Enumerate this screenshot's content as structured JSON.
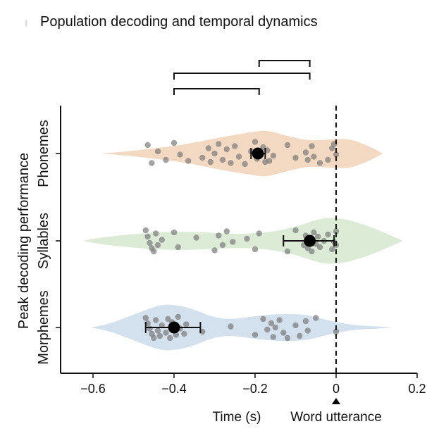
{
  "figure": {
    "title": "Population decoding and temporal dynamics"
  },
  "chart_data": {
    "type": "violin",
    "orientation": "horizontal",
    "title": "Population decoding and temporal dynamics",
    "xlabel": "Time (s)",
    "ylabel": "Peak decoding performance",
    "xlim": [
      -0.68,
      0.2
    ],
    "xticks": [
      -0.6,
      -0.4,
      -0.2,
      0,
      0.2
    ],
    "xtick_labels": [
      "−0.6",
      "−0.4",
      "−0.2",
      "0",
      "0.2"
    ],
    "annotations": [
      {
        "x": 0,
        "text": "Word utterance",
        "style": "dashed-vertical-line-with-marker"
      }
    ],
    "significance_brackets": [
      {
        "from": "Morphemes",
        "to": "Phonemes",
        "x1": -0.4,
        "x2": -0.19
      },
      {
        "from": "Morphemes",
        "to": "Syllables",
        "x1": -0.4,
        "x2": -0.065
      },
      {
        "from": "Phonemes",
        "to": "Syllables",
        "x1": -0.19,
        "x2": -0.065
      }
    ],
    "series": [
      {
        "name": "Phonemes",
        "color": "#f4d9c2",
        "mean": -0.193,
        "err_low": -0.21,
        "err_high": -0.175,
        "violin_range": [
          -0.58,
          0.115
        ],
        "density": [
          [
            -0.58,
            0.0
          ],
          [
            -0.52,
            0.08
          ],
          [
            -0.46,
            0.2
          ],
          [
            -0.4,
            0.32
          ],
          [
            -0.34,
            0.5
          ],
          [
            -0.28,
            0.72
          ],
          [
            -0.2,
            0.95
          ],
          [
            -0.17,
            1.0
          ],
          [
            -0.12,
            0.75
          ],
          [
            -0.07,
            0.55
          ],
          [
            -0.02,
            0.6
          ],
          [
            0.03,
            0.65
          ],
          [
            0.07,
            0.4
          ],
          [
            0.1,
            0.15
          ],
          [
            0.115,
            0.0
          ]
        ],
        "points": [
          -0.465,
          -0.455,
          -0.44,
          -0.42,
          -0.4,
          -0.385,
          -0.365,
          -0.33,
          -0.315,
          -0.31,
          -0.3,
          -0.29,
          -0.28,
          -0.27,
          -0.26,
          -0.25,
          -0.24,
          -0.225,
          -0.21,
          -0.2,
          -0.195,
          -0.185,
          -0.18,
          -0.175,
          -0.17,
          -0.165,
          -0.155,
          -0.12,
          -0.1,
          -0.075,
          -0.07,
          -0.06,
          -0.055,
          -0.04,
          -0.01,
          0.0,
          -0.005,
          -0.02
        ],
        "jitter": [
          -0.4,
          0.45,
          -0.1,
          0.3,
          -0.5,
          0.05,
          0.35,
          0.2,
          -0.25,
          0.4,
          0.0,
          -0.45,
          0.3,
          -0.2,
          0.45,
          -0.35,
          0.15,
          0.5,
          -0.1,
          -0.55,
          0.25,
          0.05,
          -0.3,
          0.4,
          -0.15,
          0.35,
          0.1,
          -0.4,
          0.2,
          -0.05,
          0.3,
          -0.35,
          0.15,
          0.45,
          -0.25,
          0.05,
          -0.45,
          0.3
        ]
      },
      {
        "name": "Syllables",
        "color": "#dcebd6",
        "mean": -0.065,
        "err_low": -0.13,
        "err_high": -0.005,
        "violin_range": [
          -0.625,
          0.165
        ],
        "density": [
          [
            -0.625,
            0.0
          ],
          [
            -0.58,
            0.15
          ],
          [
            -0.5,
            0.3
          ],
          [
            -0.42,
            0.4
          ],
          [
            -0.34,
            0.38
          ],
          [
            -0.28,
            0.32
          ],
          [
            -0.22,
            0.3
          ],
          [
            -0.16,
            0.38
          ],
          [
            -0.1,
            0.6
          ],
          [
            -0.05,
            0.9
          ],
          [
            -0.02,
            1.0
          ],
          [
            0.02,
            0.95
          ],
          [
            0.07,
            0.7
          ],
          [
            0.12,
            0.35
          ],
          [
            0.165,
            0.0
          ]
        ],
        "points": [
          -0.47,
          -0.465,
          -0.46,
          -0.455,
          -0.45,
          -0.445,
          -0.44,
          -0.43,
          -0.4,
          -0.39,
          -0.345,
          -0.3,
          -0.29,
          -0.28,
          -0.27,
          -0.255,
          -0.22,
          -0.2,
          -0.19,
          -0.12,
          -0.1,
          -0.08,
          -0.075,
          -0.07,
          -0.065,
          -0.06,
          -0.055,
          -0.05,
          -0.045,
          -0.04,
          -0.03,
          -0.02,
          -0.01,
          0.0,
          0.0,
          -0.005
        ],
        "jitter": [
          -0.5,
          -0.2,
          0.1,
          0.35,
          0.5,
          -0.35,
          0.2,
          -0.05,
          -0.4,
          0.3,
          -0.15,
          0.45,
          -0.25,
          0.2,
          -0.45,
          0.05,
          -0.1,
          0.4,
          -0.35,
          0.5,
          -0.5,
          0.2,
          -0.25,
          0.35,
          -0.1,
          0.5,
          -0.4,
          0.15,
          -0.2,
          0.3,
          0.0,
          -0.3,
          0.4,
          -0.45,
          0.2,
          0.05
        ]
      },
      {
        "name": "Morphemes",
        "color": "#d3e0ed",
        "mean": -0.4,
        "err_low": -0.47,
        "err_high": -0.335,
        "violin_range": [
          -0.605,
          0.14
        ],
        "density": [
          [
            -0.605,
            0.0
          ],
          [
            -0.56,
            0.15
          ],
          [
            -0.5,
            0.55
          ],
          [
            -0.44,
            0.95
          ],
          [
            -0.41,
            1.0
          ],
          [
            -0.36,
            0.85
          ],
          [
            -0.3,
            0.4
          ],
          [
            -0.25,
            0.35
          ],
          [
            -0.2,
            0.5
          ],
          [
            -0.13,
            0.6
          ],
          [
            -0.07,
            0.55
          ],
          [
            -0.02,
            0.3
          ],
          [
            0.04,
            0.1
          ],
          [
            0.1,
            0.05
          ],
          [
            0.14,
            0.0
          ]
        ],
        "points": [
          -0.47,
          -0.465,
          -0.46,
          -0.455,
          -0.45,
          -0.445,
          -0.44,
          -0.435,
          -0.43,
          -0.42,
          -0.415,
          -0.41,
          -0.405,
          -0.4,
          -0.395,
          -0.39,
          -0.385,
          -0.375,
          -0.37,
          -0.33,
          -0.26,
          -0.2,
          -0.18,
          -0.17,
          -0.16,
          -0.155,
          -0.15,
          -0.14,
          -0.13,
          -0.12,
          -0.1,
          -0.09,
          -0.075,
          -0.07,
          -0.05,
          0.0
        ],
        "jitter": [
          -0.45,
          -0.2,
          0.05,
          0.3,
          0.5,
          -0.35,
          0.15,
          0.4,
          -0.1,
          0.25,
          -0.4,
          0.5,
          -0.25,
          0.1,
          0.35,
          -0.5,
          0.05,
          0.3,
          -0.15,
          0.2,
          -0.05,
          0.35,
          -0.4,
          0.1,
          -0.2,
          0.45,
          0.0,
          -0.35,
          0.25,
          0.5,
          -0.1,
          0.4,
          -0.3,
          0.15,
          -0.45,
          0.2
        ]
      }
    ]
  }
}
